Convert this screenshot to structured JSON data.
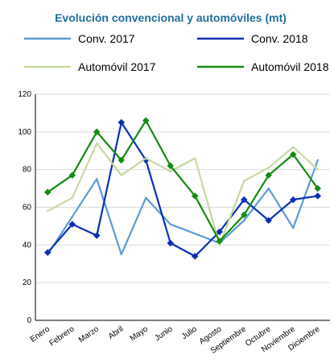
{
  "colors": {
    "title": "#1F6F9B",
    "axis": "#000000",
    "grid": "#D9D9D9"
  },
  "chart_data": {
    "type": "line",
    "title": "Evolución convencional y automóviles (mt)",
    "xlabel": "",
    "ylabel": "",
    "categories": [
      "Enero",
      "Febrero",
      "Marzo",
      "Abril",
      "Mayo",
      "Junio",
      "Julio",
      "Agosto",
      "Septiembre",
      "Octubre",
      "Noviembre",
      "Diciembre"
    ],
    "ylim": [
      0,
      120
    ],
    "yticks": [
      0,
      20,
      40,
      60,
      80,
      100,
      120
    ],
    "grid": true,
    "legend_position": "top",
    "series": [
      {
        "name": "Conv. 2017",
        "color": "#5B9BD5",
        "markers": false,
        "values": [
          35,
          55,
          75,
          35,
          65,
          51,
          46,
          41,
          53,
          70,
          49,
          85
        ]
      },
      {
        "name": "Conv. 2018",
        "color": "#0A2FB5",
        "markers": true,
        "values": [
          36,
          51,
          45,
          105,
          85,
          41,
          34,
          47,
          64,
          53,
          64,
          66
        ]
      },
      {
        "name": "Automóvil 2017",
        "color": "#C6D9A0",
        "markers": false,
        "values": [
          58,
          65,
          94,
          77,
          86,
          79,
          86,
          40,
          74,
          81,
          92,
          80
        ]
      },
      {
        "name": "Automóvil 2018",
        "color": "#128C12",
        "markers": true,
        "values": [
          68,
          77,
          100,
          85,
          106,
          82,
          66,
          42,
          56,
          77,
          88,
          70
        ]
      }
    ]
  }
}
